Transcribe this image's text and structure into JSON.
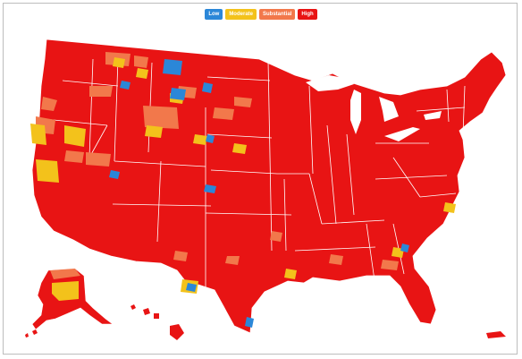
{
  "legend": {
    "items": [
      {
        "label": "Low",
        "color": "#2b87d8"
      },
      {
        "label": "Moderate",
        "color": "#f3c21b"
      },
      {
        "label": "Substantial",
        "color": "#f2784b"
      },
      {
        "label": "High",
        "color": "#e81414"
      }
    ]
  },
  "map": {
    "dominant_level": "High",
    "border_color": "#ffffff",
    "regions_shown": [
      "Contiguous United States",
      "Alaska",
      "Hawaii",
      "Puerto Rico"
    ]
  }
}
